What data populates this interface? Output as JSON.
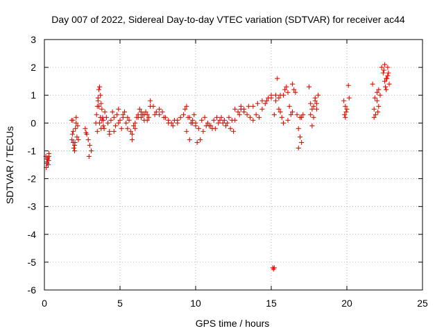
{
  "chart_data": {
    "type": "scatter",
    "title": "Day 007 of 2022, Sidereal Day-to-day VTEC variation (SDTVAR) for receiver ac44",
    "xlabel": "GPS time / hours",
    "ylabel": "SDTVAR / TECUs",
    "xlim": [
      0,
      25
    ],
    "ylim": [
      -6,
      3
    ],
    "xticks": [
      "0",
      "5",
      "10",
      "15",
      "20",
      "25"
    ],
    "yticks": [
      "-6",
      "-5",
      "-4",
      "-3",
      "-2",
      "-1",
      "0",
      "1",
      "2",
      "3"
    ],
    "grid": true,
    "marker": "+",
    "color": "#ff0000",
    "series": [
      {
        "name": "SDTVAR",
        "x": [
          0.1,
          0.15,
          0.2,
          0.25,
          0.3,
          0.12,
          0.22,
          0.28,
          0.18,
          0.3,
          1.8,
          1.85,
          1.9,
          1.95,
          2.0,
          2.05,
          2.1,
          1.82,
          1.9,
          2.0,
          2.1,
          2.15,
          2.2,
          2.25,
          1.88,
          2.02,
          2.7,
          2.8,
          2.9,
          3.0,
          3.1,
          2.75,
          2.95,
          3.4,
          3.45,
          3.5,
          3.55,
          3.6,
          3.65,
          3.7,
          3.75,
          3.8,
          3.85,
          3.9,
          3.95,
          4.0,
          3.5,
          3.6,
          3.7,
          3.8,
          3.9,
          3.55,
          3.65,
          3.75,
          4.1,
          4.2,
          4.3,
          4.4,
          4.5,
          4.6,
          4.7,
          4.8,
          4.9,
          5.0,
          5.1,
          5.2,
          5.3,
          5.4,
          5.5,
          4.3,
          4.6,
          4.9,
          5.2,
          5.5,
          5.6,
          5.7,
          5.8,
          5.9,
          6.0,
          6.1,
          6.2,
          6.3,
          6.4,
          6.5,
          6.6,
          6.7,
          6.8,
          6.9,
          7.0,
          5.8,
          6.0,
          6.2,
          6.4,
          6.6,
          6.8,
          7.0,
          7.2,
          7.4,
          7.6,
          7.8,
          8.0,
          8.2,
          8.4,
          8.6,
          8.8,
          9.0,
          9.2,
          7.3,
          7.6,
          7.9,
          8.2,
          8.5,
          8.8,
          9.3,
          9.4,
          9.5,
          9.6,
          9.7,
          9.8,
          9.9,
          10.0,
          9.4,
          9.6,
          9.8,
          10.0,
          10.2,
          10.4,
          10.6,
          10.8,
          11.0,
          11.2,
          11.4,
          11.6,
          11.8,
          12.0,
          12.2,
          12.4,
          12.6,
          12.8,
          13.0,
          10.1,
          10.3,
          10.5,
          10.7,
          10.9,
          11.1,
          11.3,
          11.5,
          11.7,
          11.9,
          12.1,
          12.3,
          12.5,
          13.0,
          13.2,
          13.4,
          13.6,
          13.8,
          14.0,
          14.2,
          14.4,
          14.6,
          14.8,
          15.0,
          12.6,
          12.9,
          13.2,
          13.5,
          13.8,
          14.1,
          14.4,
          14.7,
          15.0,
          15.3,
          15.6,
          15.2,
          15.3,
          15.4,
          15.5,
          15.6,
          15.7,
          15.8,
          15.9,
          16.0,
          16.1,
          16.2,
          16.3,
          16.4,
          16.5,
          16.6,
          15.5,
          15.8,
          16.1,
          16.4,
          16.7,
          16.8,
          16.9,
          17.0,
          17.1,
          16.8,
          16.9,
          17.0,
          17.5,
          17.6,
          17.7,
          17.8,
          17.9,
          18.0,
          18.1,
          17.6,
          17.8,
          18.0,
          17.7,
          17.9,
          15.1,
          15.15,
          15.2,
          19.8,
          19.85,
          19.9,
          19.95,
          20.0,
          19.9,
          20.1,
          20.15,
          21.7,
          21.8,
          21.9,
          22.0,
          22.1,
          22.2,
          21.8,
          22.0,
          22.1,
          21.85,
          22.05,
          22.3,
          22.4,
          22.5,
          22.6,
          22.7,
          22.8,
          22.45,
          22.55,
          22.65,
          22.75,
          22.5,
          22.6,
          22.7
        ],
        "y": [
          -1.2,
          -1.4,
          -1.3,
          -1.5,
          -1.1,
          -1.6,
          -1.25,
          -1.35,
          -1.45,
          -1.2,
          0.1,
          -0.4,
          -0.7,
          -0.9,
          -1.0,
          -0.2,
          0.0,
          -0.6,
          -0.3,
          -0.8,
          0.2,
          -0.5,
          -0.1,
          -0.6,
          0.1,
          -0.7,
          -0.2,
          -0.4,
          -0.6,
          -0.8,
          -1.0,
          -0.35,
          -1.2,
          0.0,
          0.3,
          0.6,
          0.9,
          1.2,
          1.3,
          1.0,
          0.7,
          0.5,
          0.2,
          0.1,
          -0.2,
          0.4,
          -0.3,
          0.6,
          0.2,
          0.1,
          -0.1,
          0.8,
          0.0,
          -0.2,
          0.2,
          0.0,
          -0.3,
          0.1,
          0.4,
          0.2,
          -0.1,
          0.3,
          0.0,
          0.1,
          -0.2,
          0.2,
          0.4,
          0.0,
          -0.2,
          -0.4,
          -0.3,
          0.5,
          0.3,
          0.2,
          0.1,
          -0.3,
          -0.6,
          -0.1,
          0.0,
          0.2,
          0.3,
          0.5,
          0.2,
          0.3,
          0.1,
          0.4,
          0.3,
          0.2,
          0.6,
          -0.4,
          -0.2,
          0.2,
          0.4,
          0.3,
          0.1,
          0.8,
          0.6,
          0.4,
          0.3,
          0.4,
          0.2,
          0.1,
          0.0,
          0.1,
          0.1,
          0.2,
          0.3,
          0.3,
          0.5,
          0.2,
          0.0,
          -0.1,
          0.0,
          0.5,
          0.6,
          0.2,
          -0.6,
          0.0,
          0.1,
          0.3,
          -0.1,
          -0.3,
          0.2,
          0.0,
          0.0,
          -0.2,
          0.1,
          0.2,
          0.0,
          -0.1,
          0.1,
          0.2,
          0.1,
          0.0,
          -0.1,
          0.2,
          0.1,
          0.5,
          0.4,
          0.5,
          -0.7,
          -0.6,
          -0.3,
          -0.1,
          -0.1,
          -0.2,
          -0.2,
          0.0,
          0.2,
          0.1,
          0.0,
          -0.2,
          -0.3,
          0.6,
          0.4,
          0.3,
          0.2,
          0.1,
          0.3,
          0.2,
          0.5,
          0.7,
          0.9,
          1.0,
          0.1,
          0.3,
          0.5,
          0.6,
          0.6,
          0.7,
          0.8,
          0.8,
          0.9,
          1.0,
          1.0,
          0.3,
          0.8,
          1.6,
          0.9,
          0.4,
          0.2,
          1.0,
          1.2,
          1.3,
          1.1,
          0.6,
          0.3,
          1.4,
          1.2,
          1.1,
          0.5,
          0.0,
          0.1,
          0.4,
          0.3,
          -0.9,
          -0.5,
          0.2,
          0.3,
          -0.2,
          0.2,
          -0.7,
          1.3,
          0.7,
          0.5,
          0.2,
          0.9,
          0.5,
          1.0,
          0.3,
          0.6,
          0.7,
          -0.1,
          0.8,
          -5.2,
          -5.25,
          -5.2,
          0.8,
          0.3,
          0.6,
          0.4,
          0.5,
          0.2,
          1.35,
          0.9,
          1.4,
          0.5,
          0.3,
          0.8,
          0.6,
          1.0,
          0.2,
          1.1,
          1.2,
          0.9,
          0.4,
          2.0,
          1.8,
          1.5,
          1.6,
          2.0,
          1.4,
          1.9,
          1.3,
          1.6,
          1.8,
          2.1,
          1.2,
          1.7
        ]
      }
    ]
  }
}
